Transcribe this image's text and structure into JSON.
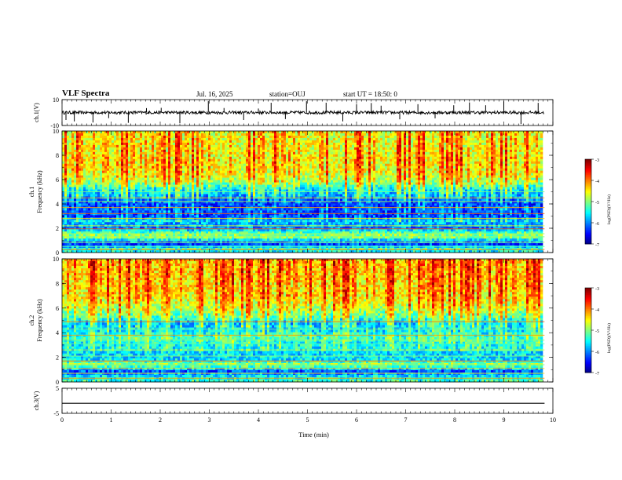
{
  "header": {
    "title": "VLF Spectra",
    "date": "Jul. 16, 2025",
    "station": "station=OUJ",
    "start": "start UT =  18:50: 0"
  },
  "chart_data": [
    {
      "type": "line",
      "name": "waveform-ch1",
      "ylabel": "ch.1(V)",
      "ylim": [
        -10,
        10
      ],
      "yticks": [
        10,
        -10
      ],
      "xlim": [
        0,
        10
      ],
      "x_extent": [
        0,
        9.83
      ],
      "level": 0,
      "noise_amplitude": 1.2,
      "spikes": [
        0.08,
        0.25,
        0.63,
        0.95,
        1.35,
        1.72,
        2.02,
        2.4,
        2.98,
        3.3,
        3.7,
        4.0,
        4.26,
        4.55,
        4.98,
        5.38,
        5.72,
        6.0,
        6.3,
        6.5,
        6.88,
        7.25,
        7.6,
        7.98,
        8.3,
        8.63,
        9.0,
        9.35,
        9.7
      ]
    },
    {
      "type": "heatmap",
      "name": "spectrogram-ch1",
      "ylabel": "ch.1\nFrequency (kHz)",
      "ylim": [
        0,
        10
      ],
      "yticks": [
        0,
        2,
        4,
        6,
        8,
        10
      ],
      "xlim": [
        0,
        10
      ],
      "x_extent": [
        0,
        9.83
      ],
      "colorbar": {
        "label": "log(PSD)(V²/Hz)",
        "range": [
          -7,
          -3
        ],
        "ticks": [
          "-3",
          "-4",
          "-5",
          "-6",
          "-7"
        ]
      },
      "profile": [
        {
          "f": 0.0,
          "v": -5.6
        },
        {
          "f": 0.3,
          "v": -5.2
        },
        {
          "f": 0.7,
          "v": -6.3
        },
        {
          "f": 1.0,
          "v": -5.7
        },
        {
          "f": 1.3,
          "v": -4.8
        },
        {
          "f": 1.7,
          "v": -5.3
        },
        {
          "f": 2.0,
          "v": -6.0
        },
        {
          "f": 2.6,
          "v": -5.7
        },
        {
          "f": 3.0,
          "v": -6.3
        },
        {
          "f": 3.5,
          "v": -6.2
        },
        {
          "f": 4.0,
          "v": -6.3
        },
        {
          "f": 4.6,
          "v": -5.9
        },
        {
          "f": 5.2,
          "v": -5.6
        },
        {
          "f": 5.8,
          "v": -4.9
        },
        {
          "f": 6.5,
          "v": -4.6
        },
        {
          "f": 7.5,
          "v": -4.5
        },
        {
          "f": 8.5,
          "v": -4.6
        },
        {
          "f": 10.0,
          "v": -4.6
        }
      ],
      "lines_khz": [
        0.25,
        0.5,
        0.85,
        1.3,
        1.55,
        1.95,
        2.2,
        2.8,
        3.2,
        3.7,
        4.2,
        4.5,
        5.0
      ]
    },
    {
      "type": "heatmap",
      "name": "spectrogram-ch2",
      "ylabel": "ch.2\nFrequency (kHz)",
      "ylim": [
        0,
        10
      ],
      "yticks": [
        0,
        2,
        4,
        6,
        8,
        10
      ],
      "xlim": [
        0,
        10
      ],
      "x_extent": [
        0,
        9.83
      ],
      "colorbar": {
        "label": "log(PSD)(V²/Hz)",
        "range": [
          -7,
          -3
        ],
        "ticks": [
          "-3",
          "-4",
          "-5",
          "-6",
          "-7"
        ]
      },
      "profile": [
        {
          "f": 0.0,
          "v": -5.2
        },
        {
          "f": 0.5,
          "v": -5.6
        },
        {
          "f": 0.9,
          "v": -6.2
        },
        {
          "f": 1.4,
          "v": -4.8
        },
        {
          "f": 1.8,
          "v": -5.6
        },
        {
          "f": 2.4,
          "v": -5.6
        },
        {
          "f": 3.0,
          "v": -5.5
        },
        {
          "f": 3.6,
          "v": -5.3
        },
        {
          "f": 4.2,
          "v": -5.6
        },
        {
          "f": 4.8,
          "v": -5.8
        },
        {
          "f": 5.3,
          "v": -5.2
        },
        {
          "f": 6.0,
          "v": -4.8
        },
        {
          "f": 7.0,
          "v": -4.5
        },
        {
          "f": 8.5,
          "v": -4.4
        },
        {
          "f": 10.0,
          "v": -4.3
        }
      ],
      "lines_khz": [
        0.3,
        0.7,
        1.1,
        1.4,
        1.7,
        2.1,
        2.6,
        3.1,
        3.4,
        3.8,
        4.3,
        4.9
      ]
    },
    {
      "type": "line",
      "name": "waveform-ch3",
      "ylabel": "ch.3(V)",
      "ylim": [
        -5,
        5
      ],
      "yticks": [
        5,
        -5
      ],
      "xlim": [
        0,
        10
      ],
      "x_extent": [
        0,
        9.83
      ],
      "level": -1,
      "noise_amplitude": 0,
      "spikes": []
    }
  ],
  "x_axis": {
    "label": "Time (min)",
    "ticks": [
      "0",
      "1",
      "2",
      "3",
      "4",
      "5",
      "6",
      "7",
      "8",
      "9",
      "10"
    ]
  }
}
